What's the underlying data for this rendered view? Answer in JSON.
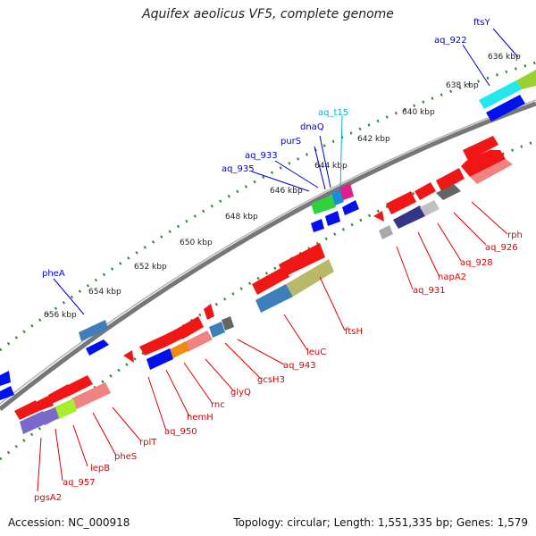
{
  "title": "Aquifex aeolicus VF5, complete genome",
  "accession": "Accession: NC_000918",
  "summary": "Topology: circular; Length: 1,551,335 bp; Genes: 1,579",
  "colors": {
    "forward_label": "#0000c8",
    "reverse_label": "#dd0000",
    "trna_label": "#00b4d0",
    "backbone": "#707070",
    "tick_dots": "#2e8b2e"
  },
  "scale_ticks": [
    "636 kbp",
    "638 kbp",
    "640 kbp",
    "642 kbp",
    "644 kbp",
    "646 kbp",
    "648 kbp",
    "650 kbp",
    "652 kbp",
    "654 kbp",
    "656 kbp"
  ],
  "forward_genes": [
    "ftsY",
    "aq_922",
    "aq_t15",
    "dnaQ",
    "purS",
    "aq_933",
    "aq_935",
    "pheA"
  ],
  "reverse_genes": [
    "rph",
    "aq_926",
    "aq_928",
    "napA2",
    "aq_931",
    "ftsH",
    "leuC",
    "aq_943",
    "gcsH3",
    "glyQ",
    "rnc",
    "hemH",
    "aq_950",
    "rplT",
    "pheS",
    "lepB",
    "aq_957",
    "pgsA2"
  ]
}
